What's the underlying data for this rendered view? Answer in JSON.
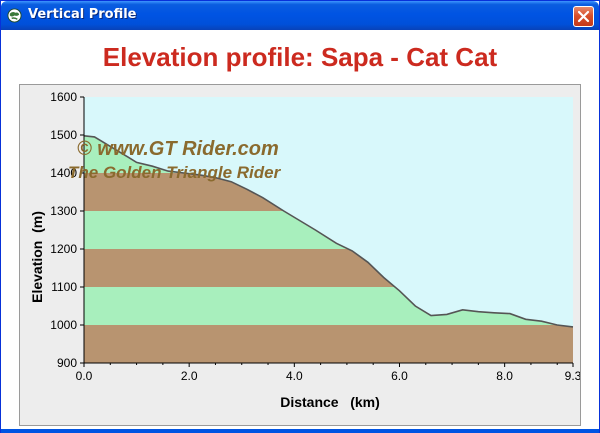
{
  "window": {
    "title": "Vertical Profile",
    "icon": "globe-icon",
    "close_icon": "close-icon"
  },
  "colors": {
    "title_red": "#cc2a1f",
    "sky": "#d8f8fb",
    "band_green": "#a8efbd",
    "band_brown": "#b89470",
    "line": "#555555",
    "watermark": "#8a6a2e"
  },
  "watermark": {
    "line1": "©  www.GT Rider.com",
    "line2": "The Golden Triangle Rider"
  },
  "chart_data": {
    "type": "area",
    "title": "Elevation profile: Sapa - Cat Cat",
    "xlabel": "Distance   (km)",
    "ylabel": "Elevation  (m)",
    "xlim": [
      0,
      9.3
    ],
    "ylim": [
      900,
      1600
    ],
    "x_ticks": [
      "0.0",
      "2.0",
      "4.0",
      "6.0",
      "8.0",
      "9.3"
    ],
    "y_ticks": [
      "900",
      "1000",
      "1100",
      "1200",
      "1300",
      "1400",
      "1500",
      "1600"
    ],
    "bands": [
      {
        "from": 900,
        "to": 1000,
        "color": "brown"
      },
      {
        "from": 1000,
        "to": 1100,
        "color": "green"
      },
      {
        "from": 1100,
        "to": 1200,
        "color": "brown"
      },
      {
        "from": 1200,
        "to": 1300,
        "color": "green"
      },
      {
        "from": 1300,
        "to": 1400,
        "color": "brown"
      },
      {
        "from": 1400,
        "to": 1600,
        "color": "green"
      }
    ],
    "series": [
      {
        "x": [
          0.0,
          0.2,
          0.5,
          0.8,
          1.0,
          1.3,
          1.6,
          1.9,
          2.2,
          2.5,
          2.8,
          3.1,
          3.4,
          3.8,
          4.1,
          4.4,
          4.8,
          5.1,
          5.4,
          5.7,
          6.0,
          6.3,
          6.6,
          6.9,
          7.2,
          7.5,
          7.8,
          8.1,
          8.4,
          8.7,
          9.0,
          9.3
        ],
        "y": [
          1498,
          1495,
          1470,
          1445,
          1428,
          1418,
          1405,
          1400,
          1395,
          1388,
          1377,
          1357,
          1335,
          1300,
          1275,
          1250,
          1215,
          1195,
          1165,
          1125,
          1090,
          1050,
          1025,
          1028,
          1040,
          1035,
          1032,
          1030,
          1015,
          1010,
          1000,
          995
        ]
      }
    ],
    "grid": false,
    "legend": "none"
  }
}
